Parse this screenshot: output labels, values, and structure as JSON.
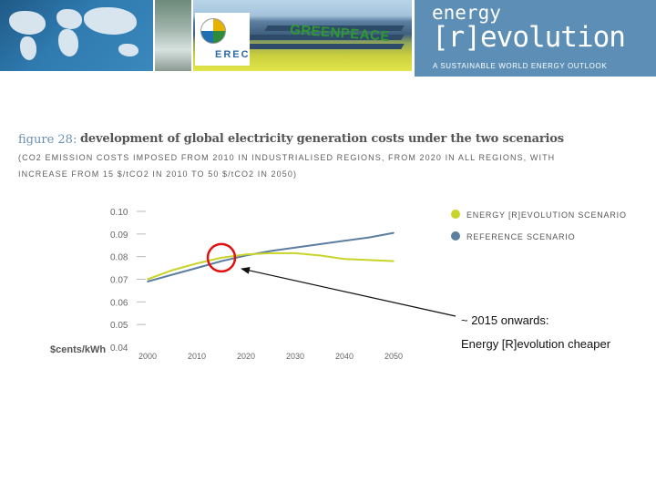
{
  "header": {
    "erec_label": "EREC",
    "greenpeace_label": "GREENPEACE",
    "brand_line1": "energy",
    "brand_line2": "[r]evolution",
    "brand_subtitle": "A SUSTAINABLE WORLD ENERGY OUTLOOK"
  },
  "figure": {
    "number": "figure 28:",
    "title": "development of global electricity generation costs under the two scenarios",
    "note_line1": "(CO2 EMISSION COSTS IMPOSED FROM 2010 IN INDUSTRIALISED REGIONS, FROM 2020 IN ALL REGIONS, WITH",
    "note_line2": "INCREASE FROM 15 $/tCO2 IN 2010 TO 50 $/tCO2 IN 2050)"
  },
  "colors": {
    "revolution": "#c8d42a",
    "reference": "#5b7fa0",
    "annotation": "#e01010",
    "brand": "#5d8fb6"
  },
  "chart_data": {
    "type": "line",
    "ylabel": "$cents/kWh",
    "x": [
      2000,
      2005,
      2010,
      2015,
      2020,
      2025,
      2030,
      2035,
      2040,
      2045,
      2050
    ],
    "x_ticks": [
      "2000",
      "2010",
      "2020",
      "2030",
      "2040",
      "2050"
    ],
    "y_ticks": [
      "0.10",
      "0.09",
      "0.08",
      "0.07",
      "0.06",
      "0.05",
      "0.04"
    ],
    "ylim": [
      0.04,
      0.1
    ],
    "xlim": [
      2000,
      2050
    ],
    "series": [
      {
        "name": "ENERGY [R]EVOLUTION SCENARIO",
        "color": "#c8d42a",
        "values": [
          0.07,
          0.074,
          0.077,
          0.0795,
          0.081,
          0.0815,
          0.0815,
          0.0805,
          0.079,
          0.0785,
          0.078
        ]
      },
      {
        "name": "REFERENCE SCENARIO",
        "color": "#5b7fa0",
        "values": [
          0.069,
          0.072,
          0.075,
          0.078,
          0.0805,
          0.0825,
          0.084,
          0.0855,
          0.087,
          0.0885,
          0.0905
        ]
      }
    ],
    "legend_position": "top-right",
    "annotation": {
      "line1": "~ 2015 onwards:",
      "line2": "Energy [R]evolution cheaper",
      "x": 2015,
      "y": 0.0795
    }
  }
}
